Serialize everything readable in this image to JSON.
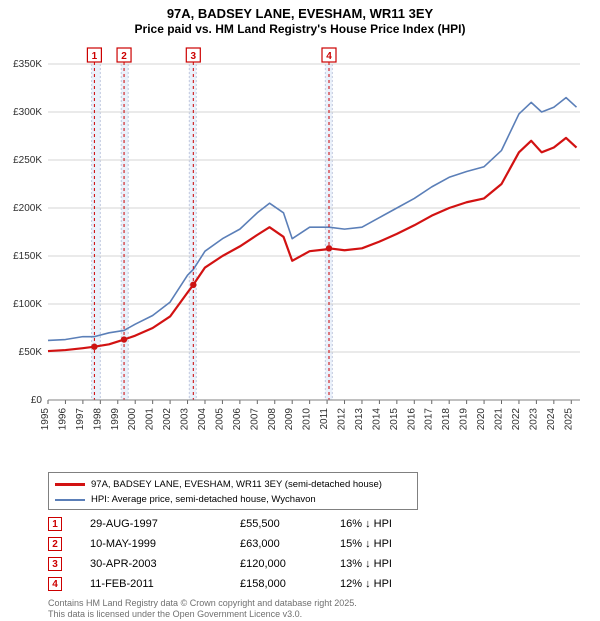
{
  "title": {
    "line1": "97A, BADSEY LANE, EVESHAM, WR11 3EY",
    "line2": "Price paid vs. HM Land Registry's House Price Index (HPI)"
  },
  "chart": {
    "type": "line",
    "background_color": "#ffffff",
    "grid_color": "#d5d5d5",
    "border_color": "#808080",
    "y_axis": {
      "min": 0,
      "max": 350000,
      "tick_step": 50000,
      "ticks": [
        "£0",
        "£50K",
        "£100K",
        "£150K",
        "£200K",
        "£250K",
        "£300K",
        "£350K"
      ],
      "label_fontsize": 10
    },
    "x_axis": {
      "min": 1995,
      "max": 2025.5,
      "ticks": [
        1995,
        1996,
        1997,
        1998,
        1999,
        2000,
        2001,
        2002,
        2003,
        2004,
        2005,
        2006,
        2007,
        2008,
        2009,
        2010,
        2011,
        2012,
        2013,
        2014,
        2015,
        2016,
        2017,
        2018,
        2019,
        2020,
        2021,
        2022,
        2023,
        2024,
        2025
      ],
      "label_fontsize": 10
    },
    "highlight_bands": [
      {
        "from": 1997.5,
        "to": 1998.0,
        "color": "#eaf1fb"
      },
      {
        "from": 1999.2,
        "to": 1999.6,
        "color": "#eaf1fb"
      },
      {
        "from": 2003.1,
        "to": 2003.5,
        "color": "#eaf1fb"
      },
      {
        "from": 2010.9,
        "to": 2011.3,
        "color": "#eaf1fb"
      }
    ],
    "band_divider_color": "#c0c8de",
    "markers": [
      {
        "n": "1",
        "x": 1997.66,
        "y": 55500,
        "box_stroke": "#cc0000"
      },
      {
        "n": "2",
        "x": 1999.36,
        "y": 63000,
        "box_stroke": "#cc0000"
      },
      {
        "n": "3",
        "x": 2003.33,
        "y": 120000,
        "box_stroke": "#cc0000"
      },
      {
        "n": "4",
        "x": 2011.11,
        "y": 158000,
        "box_stroke": "#cc0000"
      }
    ],
    "series": [
      {
        "name": "HPI: Average price, semi-detached house, Wychavon",
        "color": "#5b7fb8",
        "width": 1.6,
        "points": [
          [
            1995,
            62000
          ],
          [
            1996,
            63000
          ],
          [
            1997,
            66000
          ],
          [
            1997.66,
            66000
          ],
          [
            1998.5,
            70000
          ],
          [
            1999.36,
            72500
          ],
          [
            2000,
            79000
          ],
          [
            2001,
            88000
          ],
          [
            2002,
            102000
          ],
          [
            2003,
            130000
          ],
          [
            2003.33,
            136000
          ],
          [
            2004,
            155000
          ],
          [
            2005,
            168000
          ],
          [
            2006,
            178000
          ],
          [
            2007,
            195000
          ],
          [
            2007.7,
            205000
          ],
          [
            2008.5,
            195000
          ],
          [
            2009,
            168000
          ],
          [
            2010,
            180000
          ],
          [
            2011,
            180000
          ],
          [
            2011.11,
            180000
          ],
          [
            2012,
            178000
          ],
          [
            2013,
            180000
          ],
          [
            2014,
            190000
          ],
          [
            2015,
            200000
          ],
          [
            2016,
            210000
          ],
          [
            2017,
            222000
          ],
          [
            2018,
            232000
          ],
          [
            2019,
            238000
          ],
          [
            2020,
            243000
          ],
          [
            2021,
            260000
          ],
          [
            2022,
            298000
          ],
          [
            2022.7,
            310000
          ],
          [
            2023.3,
            300000
          ],
          [
            2024,
            305000
          ],
          [
            2024.7,
            315000
          ],
          [
            2025.3,
            305000
          ]
        ]
      },
      {
        "name": "97A, BADSEY LANE, EVESHAM, WR11 3EY (semi-detached house)",
        "color": "#d21212",
        "width": 2.2,
        "points": [
          [
            1995,
            51000
          ],
          [
            1996,
            52000
          ],
          [
            1997,
            54000
          ],
          [
            1997.66,
            55500
          ],
          [
            1998.5,
            58000
          ],
          [
            1999.36,
            63000
          ],
          [
            2000,
            67000
          ],
          [
            2001,
            75000
          ],
          [
            2002,
            87000
          ],
          [
            2003,
            112000
          ],
          [
            2003.33,
            120000
          ],
          [
            2004,
            138000
          ],
          [
            2005,
            150000
          ],
          [
            2006,
            160000
          ],
          [
            2007,
            172000
          ],
          [
            2007.7,
            180000
          ],
          [
            2008.5,
            170000
          ],
          [
            2009,
            145000
          ],
          [
            2010,
            155000
          ],
          [
            2011,
            157000
          ],
          [
            2011.11,
            158000
          ],
          [
            2012,
            156000
          ],
          [
            2013,
            158000
          ],
          [
            2014,
            165000
          ],
          [
            2015,
            173000
          ],
          [
            2016,
            182000
          ],
          [
            2017,
            192000
          ],
          [
            2018,
            200000
          ],
          [
            2019,
            206000
          ],
          [
            2020,
            210000
          ],
          [
            2021,
            225000
          ],
          [
            2022,
            258000
          ],
          [
            2022.7,
            270000
          ],
          [
            2023.3,
            258000
          ],
          [
            2024,
            263000
          ],
          [
            2024.7,
            273000
          ],
          [
            2025.3,
            263000
          ]
        ]
      }
    ],
    "sale_dot_color": "#cc1212",
    "sale_dot_radius": 3.2
  },
  "legend": {
    "border_color": "#808080",
    "items": [
      {
        "color": "#d21212",
        "width": 2.5,
        "label": "97A, BADSEY LANE, EVESHAM, WR11 3EY (semi-detached house)"
      },
      {
        "color": "#5b7fb8",
        "width": 2,
        "label": "HPI: Average price, semi-detached house, Wychavon"
      }
    ]
  },
  "sales": [
    {
      "n": "1",
      "date": "29-AUG-1997",
      "price": "£55,500",
      "diff": "16% ↓ HPI"
    },
    {
      "n": "2",
      "date": "10-MAY-1999",
      "price": "£63,000",
      "diff": "15% ↓ HPI"
    },
    {
      "n": "3",
      "date": "30-APR-2003",
      "price": "£120,000",
      "diff": "13% ↓ HPI"
    },
    {
      "n": "4",
      "date": "11-FEB-2011",
      "price": "£158,000",
      "diff": "12% ↓ HPI"
    }
  ],
  "footer": {
    "line1": "Contains HM Land Registry data © Crown copyright and database right 2025.",
    "line2": "This data is licensed under the Open Government Licence v3.0."
  }
}
